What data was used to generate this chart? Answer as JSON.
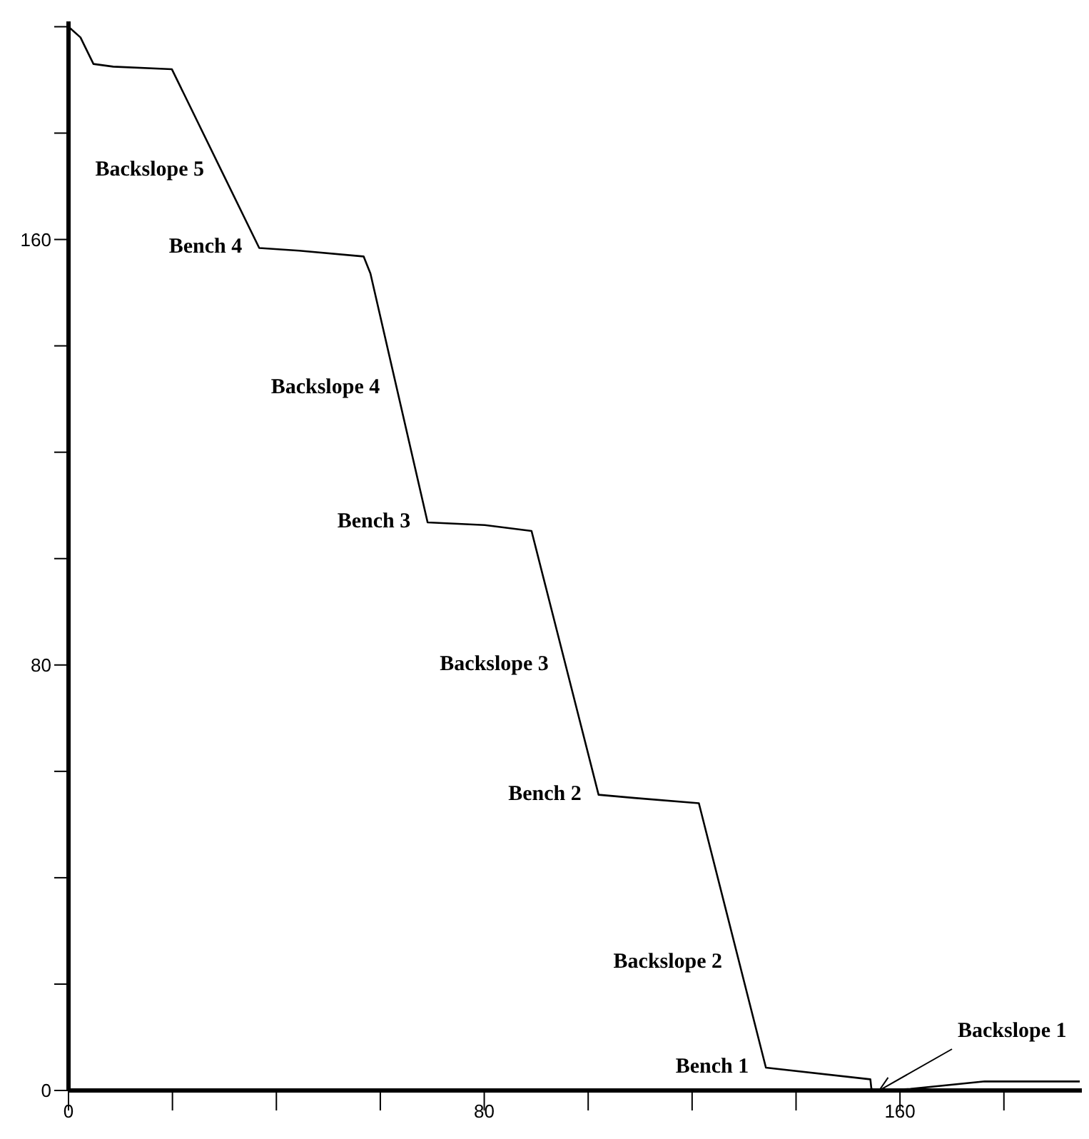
{
  "chart_data": {
    "type": "line",
    "x": [
      0,
      2.3,
      4.8,
      8.6,
      19.9,
      36.7,
      44.4,
      56.8,
      58.1,
      69.1,
      80.1,
      89.1,
      102,
      108.9,
      121.3,
      134.2,
      154.3,
      154.5,
      156,
      162,
      176.3,
      194.6
    ],
    "series": [
      {
        "color": "#000000",
        "values": [
          200,
          198,
          193,
          192.5,
          192,
          158.4,
          157.9,
          156.8,
          153.6,
          106.8,
          106.3,
          105.2,
          55.6,
          55,
          54,
          4.3,
          2.1,
          0.3,
          0,
          0.3,
          1.7,
          1.7
        ]
      }
    ],
    "xlim": [
      0,
      195
    ],
    "xticks": [
      0,
      {
        "value": 20,
        "label": null
      },
      {
        "value": 40,
        "label": null
      },
      {
        "value": 60,
        "label": null
      },
      80,
      {
        "value": 100,
        "label": null
      },
      {
        "value": 120,
        "label": null
      },
      {
        "value": 140,
        "label": null
      },
      160,
      {
        "value": 180,
        "label": null
      }
    ],
    "ylim": [
      0,
      201
    ],
    "yticks": [
      0,
      {
        "value": 20,
        "label": null
      },
      {
        "value": 40,
        "label": null
      },
      {
        "value": 60,
        "label": null
      },
      80,
      {
        "value": 100,
        "label": null
      },
      {
        "value": 120,
        "label": null
      },
      {
        "value": 140,
        "label": null
      },
      160,
      {
        "value": 180,
        "label": null
      },
      {
        "value": 200,
        "label": null
      }
    ],
    "grid": false,
    "legend": false,
    "marker": "none",
    "line_style": "solid",
    "annotations": [
      {
        "text": "Backslope 5",
        "x": 29.4,
        "y": 173
      },
      {
        "text": "Bench 4",
        "x": 36.7,
        "y": 158.4
      },
      {
        "text": "Backslope 4",
        "x": 63.2,
        "y": 132
      },
      {
        "text": "Bench 3",
        "x": 69.1,
        "y": 106.8
      },
      {
        "text": "Backslope 3",
        "x": 95.7,
        "y": 80
      },
      {
        "text": "Bench 2",
        "x": 102,
        "y": 55.6
      },
      {
        "text": "Backslope 2",
        "x": 129.1,
        "y": 24
      },
      {
        "text": "Bench 1",
        "x": 134.2,
        "y": 4.3
      },
      {
        "text": "Backslope 1",
        "x": 156,
        "y": 0
      }
    ]
  }
}
